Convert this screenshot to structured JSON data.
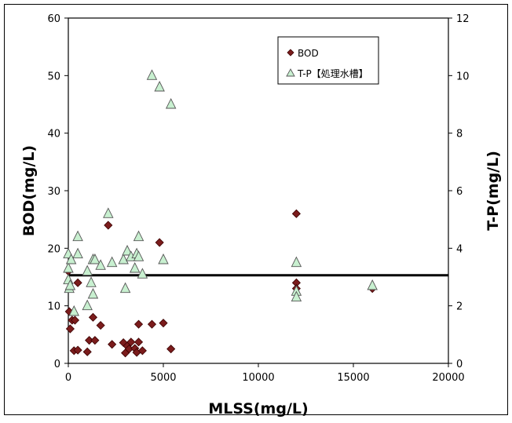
{
  "chart_data": {
    "type": "scatter",
    "xlabel": "MLSS(mg/L)",
    "ylabel_left": "BOD(mg/L)",
    "ylabel_right": "T-P(mg/L)",
    "xlim": [
      0,
      20000
    ],
    "ylim_left": [
      0,
      60
    ],
    "ylim_right": [
      0,
      12
    ],
    "x_ticks": [
      0,
      5000,
      10000,
      15000,
      20000
    ],
    "y_ticks_left": [
      0,
      10,
      20,
      30,
      40,
      50,
      60
    ],
    "y_ticks_right": [
      0,
      2,
      4,
      6,
      8,
      10,
      12
    ],
    "grid": false,
    "legend_position": "top-right",
    "reference_line": {
      "axis": "left",
      "y": 15.3,
      "color": "#000000"
    },
    "series": [
      {
        "name": "BOD",
        "axis": "left",
        "marker": "diamond",
        "color": "#7b1c1c",
        "points": [
          [
            0,
            16
          ],
          [
            50,
            9
          ],
          [
            100,
            6
          ],
          [
            200,
            7.5
          ],
          [
            300,
            2.2
          ],
          [
            350,
            7.5
          ],
          [
            500,
            14
          ],
          [
            500,
            2.3
          ],
          [
            1000,
            2
          ],
          [
            1100,
            4
          ],
          [
            1300,
            8
          ],
          [
            1400,
            4
          ],
          [
            1700,
            6.6
          ],
          [
            2100,
            24
          ],
          [
            2300,
            3.3
          ],
          [
            2900,
            3.6
          ],
          [
            3000,
            1.8
          ],
          [
            3100,
            3
          ],
          [
            3200,
            2.5
          ],
          [
            3300,
            3.7
          ],
          [
            3500,
            2.6
          ],
          [
            3600,
            1.9
          ],
          [
            3700,
            3.7
          ],
          [
            3700,
            6.8
          ],
          [
            3900,
            2.2
          ],
          [
            4400,
            6.8
          ],
          [
            4800,
            21
          ],
          [
            5000,
            7
          ],
          [
            5400,
            2.5
          ],
          [
            12000,
            26
          ],
          [
            12000,
            14
          ],
          [
            12000,
            13
          ],
          [
            16000,
            13
          ]
        ]
      },
      {
        "name": "T-P【処理水槽】",
        "axis": "right",
        "marker": "triangle",
        "color": "#c8f0d0",
        "points": [
          [
            0,
            3.8
          ],
          [
            0,
            3.3
          ],
          [
            0,
            2.9
          ],
          [
            50,
            2.6
          ],
          [
            100,
            2.7
          ],
          [
            150,
            3.6
          ],
          [
            300,
            1.8
          ],
          [
            500,
            4.4
          ],
          [
            500,
            3.8
          ],
          [
            1000,
            2
          ],
          [
            1000,
            3.2
          ],
          [
            1200,
            2.8
          ],
          [
            1300,
            2.4
          ],
          [
            1300,
            3.6
          ],
          [
            1400,
            3.6
          ],
          [
            1700,
            3.4
          ],
          [
            2100,
            5.2
          ],
          [
            2300,
            3.5
          ],
          [
            2900,
            3.6
          ],
          [
            3000,
            2.6
          ],
          [
            3100,
            3.9
          ],
          [
            3300,
            3.7
          ],
          [
            3500,
            3.3
          ],
          [
            3600,
            3.8
          ],
          [
            3700,
            3.7
          ],
          [
            3700,
            4.4
          ],
          [
            3900,
            3.1
          ],
          [
            4400,
            10
          ],
          [
            4800,
            9.6
          ],
          [
            5000,
            3.6
          ],
          [
            5400,
            9
          ],
          [
            12000,
            3.5
          ],
          [
            12000,
            2.5
          ],
          [
            12000,
            2.3
          ],
          [
            16000,
            2.7
          ]
        ]
      }
    ]
  }
}
